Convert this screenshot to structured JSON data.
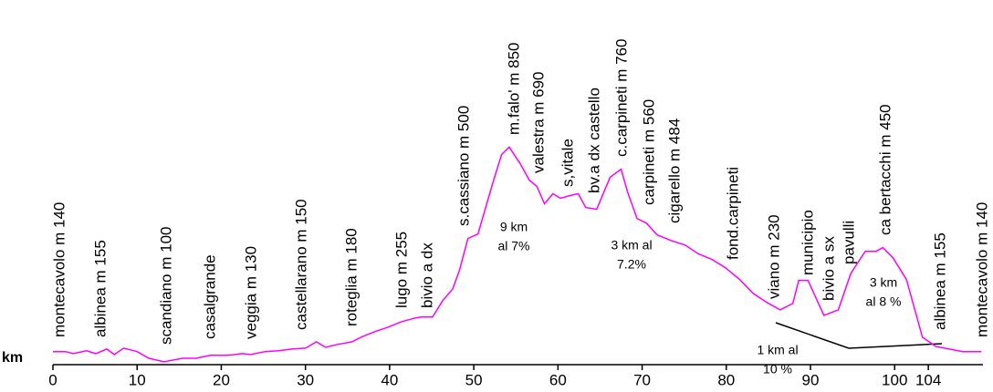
{
  "chart_data": {
    "type": "line",
    "x_label": "km",
    "color": "#ff00ff",
    "xlim": [
      0,
      110.6
    ],
    "ylim": [
      0,
      1360
    ],
    "xticks": [
      0,
      10,
      20,
      30,
      40,
      50,
      60,
      70,
      80,
      90,
      100,
      104
    ],
    "x": [
      0,
      1.5,
      2.4,
      4,
      5.1,
      6.4,
      7.3,
      8.4,
      10,
      11.4,
      13.2,
      15.4,
      17,
      18.7,
      20.8,
      22.5,
      23.5,
      25.2,
      26.8,
      28.4,
      30,
      31.3,
      32.4,
      33.8,
      35.5,
      36.6,
      38.2,
      39.8,
      41.4,
      43.1,
      43.8,
      45.1,
      46.3,
      47.5,
      48.3,
      49.3,
      50.5,
      52.3,
      53.3,
      54.2,
      55.5,
      56.6,
      57.5,
      58.4,
      59.4,
      60.3,
      61.5,
      62.4,
      63.3,
      64.6,
      66.2,
      67.5,
      68.3,
      69.4,
      70.5,
      71.8,
      73.4,
      75.1,
      76.7,
      78.3,
      79.9,
      81.6,
      83.2,
      84.8,
      86.4,
      87.9,
      88.6,
      89.7,
      90.8,
      91.6,
      93.3,
      94.8,
      96.5,
      97.8,
      98.6,
      99.8,
      101.4,
      103.3,
      104.9,
      106.5,
      108.1,
      110.3
    ],
    "values": [
      140,
      140,
      133,
      143,
      133,
      149,
      130,
      152,
      140,
      117,
      105,
      117,
      117,
      127,
      127,
      133,
      130,
      140,
      143,
      149,
      152,
      174,
      155,
      165,
      174,
      190,
      209,
      225,
      244,
      257,
      260,
      260,
      317,
      358,
      422,
      533,
      548,
      729,
      824,
      850,
      793,
      735,
      713,
      653,
      688,
      672,
      682,
      688,
      640,
      634,
      745,
      773,
      691,
      602,
      586,
      545,
      526,
      510,
      479,
      460,
      431,
      390,
      342,
      311,
      285,
      307,
      387,
      387,
      317,
      266,
      285,
      412,
      488,
      488,
      501,
      466,
      390,
      190,
      158,
      149,
      140,
      140
    ],
    "annotations": [
      "montecavolo m 140",
      "albinea m 155",
      "scandiano m 100",
      "casalgrande",
      "veggia m 130",
      "castellarano m 150",
      "roteglia m 180",
      "lugo m 255",
      "bivio a dx",
      "s.cassiano m 500",
      "m.falo' m 850",
      "valestra m 690",
      "s,vitale",
      "bv.a dx castello",
      "c.carpineti m 760",
      "carpineti m 560",
      "cigarello m 484",
      "fond.carpineti",
      "viano m 230",
      "municipio",
      "bivio a sx",
      "pavulli",
      "ca bertacchi m 450",
      "albinea m 155",
      "montecavolo m 140"
    ],
    "gradient_notes": [
      [
        "9 km",
        "al 7%"
      ],
      [
        "3 km  al",
        "7.2%"
      ],
      [
        "1 km  al",
        "10 %"
      ],
      [
        "3 km",
        "al 8 %"
      ]
    ]
  }
}
